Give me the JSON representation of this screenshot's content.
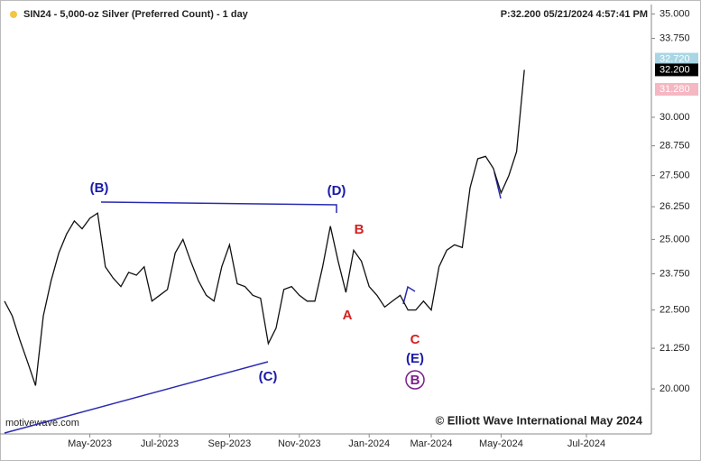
{
  "chart_data": {
    "type": "line",
    "title": "SIN24 - 5,000-oz Silver (Preferred Count) - 1 day",
    "subtitle": "P:32.200 05/21/2024 4:57:41 PM",
    "source": "motivewave.com",
    "copyright": "© Elliott Wave International May 2024",
    "log_scale": true,
    "categories": [
      null,
      null,
      null,
      null,
      null,
      null,
      null,
      null,
      null,
      null,
      null,
      "May-2023",
      null,
      null,
      null,
      null,
      null,
      null,
      null,
      null,
      "Jul-2023",
      null,
      null,
      null,
      null,
      null,
      null,
      null,
      null,
      "Sep-2023",
      null,
      null,
      null,
      null,
      null,
      null,
      null,
      null,
      "Nov-2023",
      null,
      null,
      null,
      null,
      null,
      null,
      null,
      null,
      "Jan-2024",
      null,
      null,
      null,
      null,
      null,
      null,
      null,
      "Mar-2024",
      null,
      null,
      null,
      null,
      null,
      null,
      null,
      null,
      "May-2024",
      null,
      null,
      null,
      null,
      null,
      null,
      null,
      null,
      null,
      null,
      "Jul-2024",
      null,
      null,
      null,
      null,
      null,
      null,
      null,
      null
    ],
    "series": [
      {
        "name": "SIN24",
        "color": "#111111",
        "values": [
          22.8,
          22.3,
          21.5,
          20.8,
          20.1,
          22.3,
          23.5,
          24.5,
          25.2,
          25.7,
          25.4,
          25.8,
          26.0,
          24.0,
          23.6,
          23.3,
          23.8,
          23.7,
          24.0,
          22.8,
          23.0,
          23.2,
          24.5,
          25.0,
          24.2,
          23.5,
          23.0,
          22.8,
          24.0,
          24.8,
          23.4,
          23.3,
          23.0,
          22.9,
          21.4,
          21.9,
          23.2,
          23.3,
          23.0,
          22.8,
          22.8,
          24.0,
          25.5,
          24.2,
          23.1,
          24.6,
          24.2,
          23.3,
          23.0,
          22.6,
          22.8,
          23.0,
          22.5,
          22.5,
          22.8,
          22.5,
          24.0,
          24.6,
          24.8,
          24.7,
          27.0,
          28.2,
          28.3,
          27.8,
          26.8,
          27.5,
          28.5,
          32.2,
          null,
          null,
          null,
          null,
          null,
          null,
          null,
          null,
          null,
          null,
          null,
          null,
          null,
          null,
          null,
          null
        ]
      }
    ],
    "ylim": [
      18.7,
      35.5
    ],
    "yticks": [
      {
        "value": 35,
        "label": "35.000"
      },
      {
        "value": 33.75,
        "label": "33.750"
      },
      {
        "value": 30,
        "label": "30.000"
      },
      {
        "value": 28.75,
        "label": "28.750"
      },
      {
        "value": 27.5,
        "label": "27.500"
      },
      {
        "value": 26.25,
        "label": "26.250"
      },
      {
        "value": 25,
        "label": "25.000"
      },
      {
        "value": 23.75,
        "label": "23.750"
      },
      {
        "value": 22.5,
        "label": "22.500"
      },
      {
        "value": 21.25,
        "label": "21.250"
      },
      {
        "value": 20,
        "label": "20.000"
      }
    ],
    "price_markers": [
      {
        "value": 32.72,
        "label": "32.720",
        "color": "#a9d6e5"
      },
      {
        "value": 32.2,
        "label": "32.200",
        "color": "#000000"
      },
      {
        "value": 31.28,
        "label": "31.280",
        "color": "#f5b7c2"
      }
    ],
    "annotations": [
      {
        "text": "(B)",
        "color": "#1a1aa8"
      },
      {
        "text": "(D)",
        "color": "#1a1aa8"
      },
      {
        "text": "(C)",
        "color": "#1a1aa8"
      },
      {
        "text": "A",
        "color": "#d42020"
      },
      {
        "text": "B",
        "color": "#d42020"
      },
      {
        "text": "C",
        "color": "#d42020"
      },
      {
        "text": "(E)",
        "color": "#1a1aa8"
      },
      {
        "text": "B",
        "color": "#7a1f8a"
      }
    ]
  }
}
